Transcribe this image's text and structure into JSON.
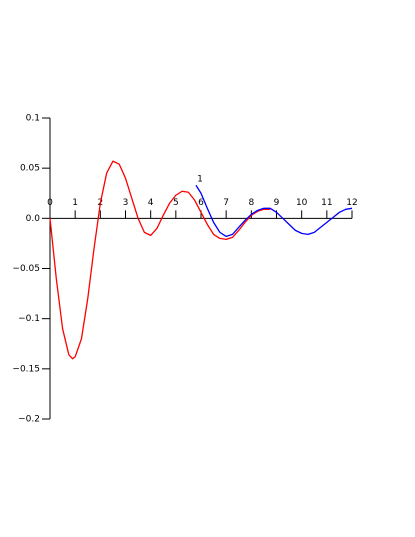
{
  "chart_data": {
    "type": "line",
    "annotation": "1",
    "xlim": [
      0,
      12
    ],
    "xticks": [
      0,
      1,
      2,
      3,
      4,
      5,
      6,
      7,
      8,
      9,
      10,
      11,
      12
    ],
    "ylim": [
      -0.2,
      0.1
    ],
    "yticks": [
      0.1,
      0.05,
      {
        "value": 0,
        "label": "0.0"
      },
      {
        "value": -0.05,
        "label": "−0.05"
      },
      {
        "value": -0.1,
        "label": "−0.1"
      },
      {
        "value": -0.15,
        "label": "−0.15"
      },
      {
        "value": -0.2,
        "label": "−0.2"
      }
    ],
    "series": [
      {
        "color": "#ff0000",
        "x": [
          0,
          0.25,
          0.5,
          0.75,
          0.9,
          1.0,
          1.25,
          1.5,
          1.75,
          2.0,
          2.25,
          2.5,
          2.75,
          3.0,
          3.25,
          3.5,
          3.75,
          4.0,
          4.25,
          4.5,
          4.75,
          5.0,
          5.25,
          5.5,
          5.75,
          6.0,
          6.25,
          6.5,
          6.75,
          7.0,
          7.25,
          7.5,
          7.75,
          8.0,
          8.25,
          8.5,
          8.75
        ],
        "values": [
          0,
          -0.06,
          -0.11,
          -0.136,
          -0.14,
          -0.138,
          -0.12,
          -0.08,
          -0.03,
          0.015,
          0.045,
          0.057,
          0.054,
          0.04,
          0.02,
          0.0,
          -0.014,
          -0.017,
          -0.01,
          0.003,
          0.015,
          0.023,
          0.027,
          0.026,
          0.018,
          0.006,
          -0.006,
          -0.016,
          -0.02,
          -0.021,
          -0.019,
          -0.012,
          -0.004,
          0.003,
          0.007,
          0.009,
          0.009
        ]
      },
      {
        "color": "#0000ff",
        "x": [
          5.8,
          6.0,
          6.25,
          6.5,
          6.75,
          7.0,
          7.25,
          7.5,
          7.75,
          8.0,
          8.25,
          8.5,
          8.75,
          9.0,
          9.25,
          9.5,
          9.75,
          10.0,
          10.25,
          10.5,
          10.75,
          11.0,
          11.25,
          11.5,
          11.75,
          12.0
        ],
        "values": [
          0.033,
          0.025,
          0.01,
          -0.004,
          -0.014,
          -0.018,
          -0.016,
          -0.009,
          -0.002,
          0.004,
          0.008,
          0.01,
          0.01,
          0.006,
          0.0,
          -0.006,
          -0.012,
          -0.015,
          -0.016,
          -0.014,
          -0.009,
          -0.004,
          0.001,
          0.006,
          0.009,
          0.01
        ]
      }
    ]
  }
}
